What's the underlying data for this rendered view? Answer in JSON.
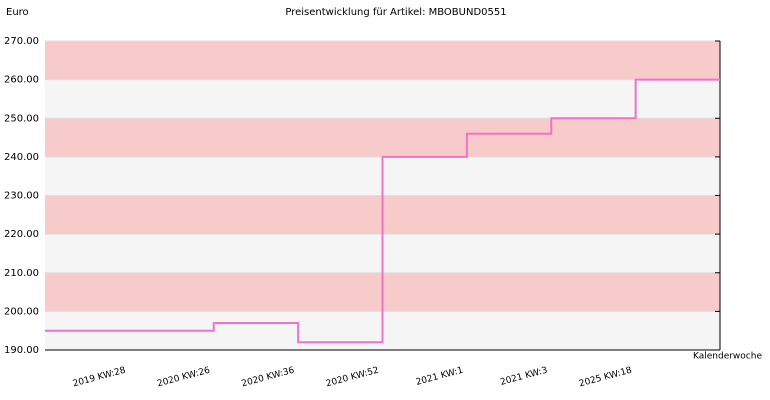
{
  "chart_data": {
    "type": "line",
    "step": "post",
    "title": "Preisentwicklung für Artikel: MBOBUND0551",
    "ylabel": "Euro",
    "xlabel": "Kalenderwoche",
    "categories": [
      "2019 KW:28",
      "2020 KW:26",
      "2020 KW:36",
      "2020 KW:52",
      "2021 KW:1",
      "2021 KW:3",
      "2025 KW:18"
    ],
    "series": [
      {
        "name": "Preis",
        "color": "#f272c8",
        "values": [
          195,
          197,
          192,
          240,
          246,
          250,
          260
        ]
      }
    ],
    "ylim": [
      190,
      270
    ],
    "yticks": [
      {
        "value": 190,
        "label": "190.00"
      },
      {
        "value": 200,
        "label": "200.00"
      },
      {
        "value": 210,
        "label": "210.00"
      },
      {
        "value": 220,
        "label": "220.00"
      },
      {
        "value": 230,
        "label": "230.00"
      },
      {
        "value": 240,
        "label": "240.00"
      },
      {
        "value": 250,
        "label": "250.00"
      },
      {
        "value": 260,
        "label": "260.00"
      },
      {
        "value": 270,
        "label": "270.00"
      }
    ],
    "band_colors": [
      "#f5f5f5",
      "#f8cbcb"
    ],
    "grid": true
  }
}
